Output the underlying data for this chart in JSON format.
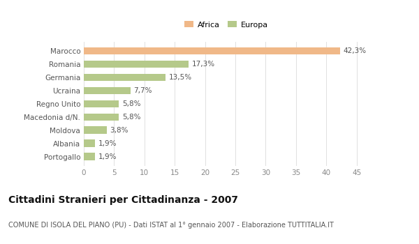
{
  "categories": [
    "Portogallo",
    "Albania",
    "Moldova",
    "Macedonia d/N.",
    "Regno Unito",
    "Ucraina",
    "Germania",
    "Romania",
    "Marocco"
  ],
  "values": [
    1.9,
    1.9,
    3.8,
    5.8,
    5.8,
    7.7,
    13.5,
    17.3,
    42.3
  ],
  "labels": [
    "1,9%",
    "1,9%",
    "3,8%",
    "5,8%",
    "5,8%",
    "7,7%",
    "13,5%",
    "17,3%",
    "42,3%"
  ],
  "colors": [
    "#b5c98a",
    "#b5c98a",
    "#b5c98a",
    "#b5c98a",
    "#b5c98a",
    "#b5c98a",
    "#b5c98a",
    "#b5c98a",
    "#f0b888"
  ],
  "legend": [
    {
      "label": "Africa",
      "color": "#f0b888"
    },
    {
      "label": "Europa",
      "color": "#b5c98a"
    }
  ],
  "xlim": [
    0,
    47
  ],
  "xticks": [
    0,
    5,
    10,
    15,
    20,
    25,
    30,
    35,
    40,
    45
  ],
  "title": "Cittadini Stranieri per Cittadinanza - 2007",
  "subtitle": "COMUNE DI ISOLA DEL PIANO (PU) - Dati ISTAT al 1° gennaio 2007 - Elaborazione TUTTITALIA.IT",
  "background_color": "#ffffff",
  "bar_height": 0.55,
  "label_fontsize": 7.5,
  "title_fontsize": 10,
  "subtitle_fontsize": 7,
  "tick_fontsize": 7.5,
  "ytick_fontsize": 7.5,
  "grid_color": "#e0e0e0"
}
